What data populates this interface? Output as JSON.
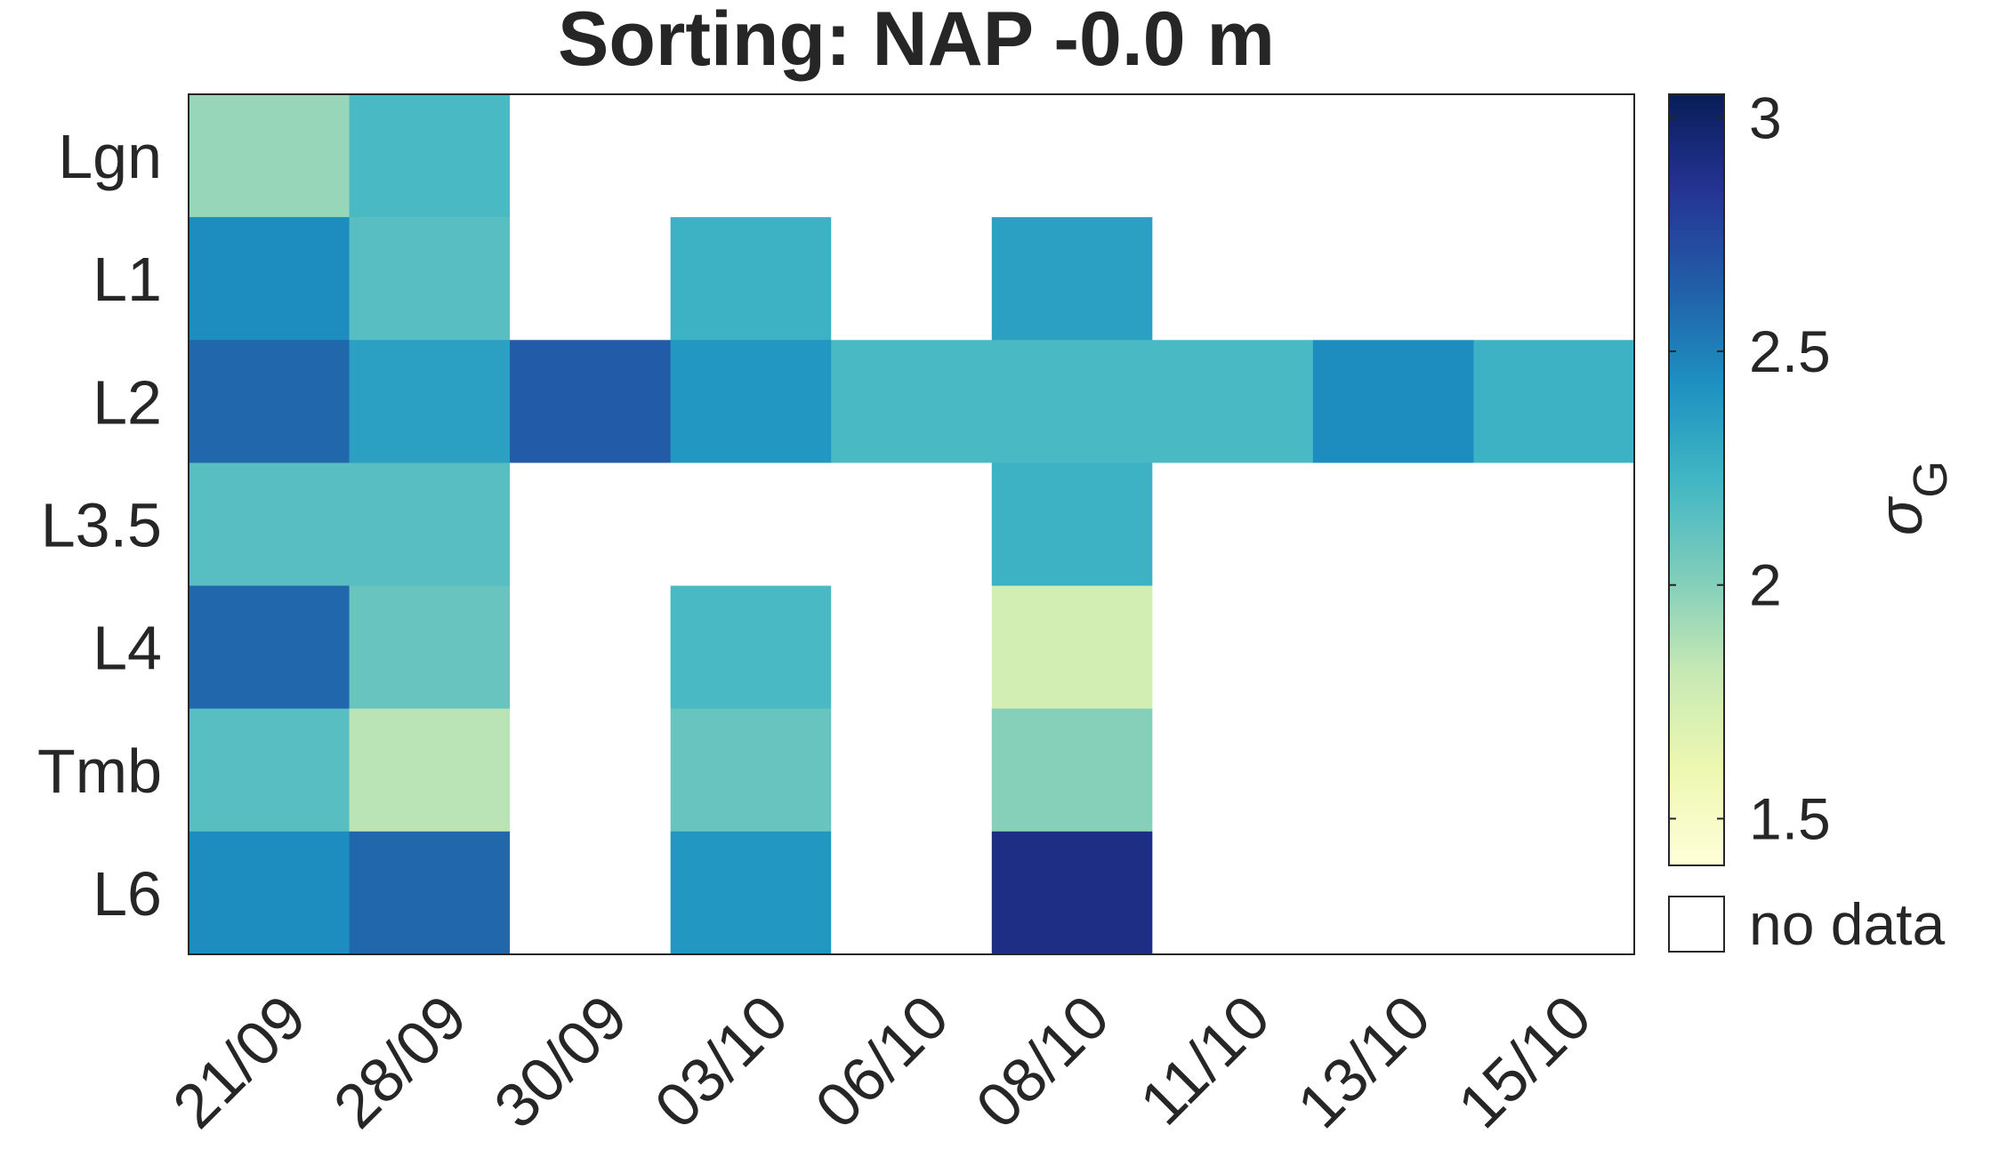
{
  "chart_data": {
    "type": "heatmap",
    "title": "Sorting: NAP -0.0 m",
    "rows": [
      "Lgn",
      "L1",
      "L2",
      "L3.5",
      "L4",
      "Tmb",
      "L6"
    ],
    "columns": [
      "21/09",
      "28/09",
      "30/09",
      "03/10",
      "06/10",
      "08/10",
      "11/10",
      "13/10",
      "15/10"
    ],
    "values": [
      [
        1.95,
        2.2,
        null,
        null,
        null,
        null,
        null,
        null,
        null
      ],
      [
        2.45,
        2.15,
        null,
        2.25,
        null,
        2.35,
        null,
        null,
        null
      ],
      [
        2.6,
        2.35,
        2.65,
        2.4,
        2.2,
        2.2,
        2.2,
        2.45,
        2.25
      ],
      [
        2.15,
        2.15,
        null,
        null,
        null,
        2.25,
        null,
        null,
        null
      ],
      [
        2.6,
        2.1,
        null,
        2.2,
        null,
        1.75,
        null,
        null,
        null
      ],
      [
        2.15,
        1.85,
        null,
        2.1,
        null,
        2.0,
        null,
        null,
        null
      ],
      [
        2.45,
        2.6,
        null,
        2.4,
        null,
        2.9,
        null,
        null,
        null
      ]
    ],
    "colorbar": {
      "label": "σ",
      "label_subscript": "G",
      "range": [
        1.4,
        3.05
      ],
      "ticks": [
        1.5,
        2,
        2.5,
        3
      ],
      "tick_labels": [
        "1.5",
        "2",
        "2.5",
        "3"
      ],
      "colormap": [
        "#ffffd9",
        "#edf8b1",
        "#c7e9b4",
        "#7fcdbb",
        "#41b6c4",
        "#1d91c0",
        "#225ea8",
        "#253494",
        "#081d58"
      ]
    },
    "no_data_label": "no data",
    "no_data_color": "#ffffff",
    "grid": false
  }
}
